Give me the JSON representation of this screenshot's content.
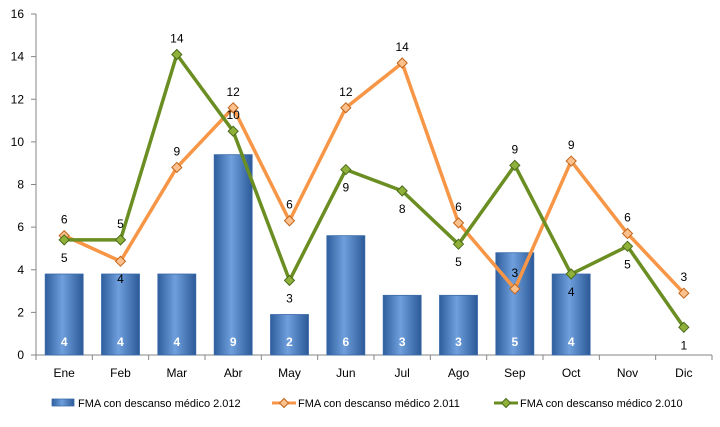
{
  "chart_data": {
    "type": "bar+line",
    "categories": [
      "Ene",
      "Feb",
      "Mar",
      "Abr",
      "May",
      "Jun",
      "Jul",
      "Ago",
      "Sep",
      "Oct",
      "Nov",
      "Dic"
    ],
    "ylim": [
      0,
      16
    ],
    "yticks": [
      0,
      2,
      4,
      6,
      8,
      10,
      12,
      14,
      16
    ],
    "grid": false,
    "legend_position": "bottom",
    "series": [
      {
        "name": "FMA con descanso médico 2.012",
        "type": "bar",
        "color": "#4a7ebb",
        "values": [
          4,
          4,
          4,
          9,
          2,
          6,
          3,
          3,
          5,
          4,
          null,
          null
        ],
        "plotted": [
          3.8,
          3.8,
          3.8,
          9.4,
          1.9,
          5.6,
          2.8,
          2.8,
          4.8,
          3.8,
          null,
          null
        ]
      },
      {
        "name": "FMA con descanso médico 2.011",
        "type": "line",
        "color": "#f79646",
        "values": [
          6,
          4,
          9,
          12,
          6,
          12,
          14,
          6,
          3,
          9,
          6,
          3
        ],
        "plotted": [
          5.6,
          4.4,
          8.8,
          11.6,
          6.3,
          11.6,
          13.7,
          6.2,
          3.1,
          9.1,
          5.7,
          2.9
        ]
      },
      {
        "name": "FMA con descanso médico 2.010",
        "type": "line",
        "color": "#6b8e23",
        "values": [
          5,
          5,
          14,
          10,
          3,
          9,
          8,
          5,
          9,
          4,
          5,
          1
        ],
        "plotted": [
          5.4,
          5.4,
          14.1,
          10.5,
          3.5,
          8.7,
          7.7,
          5.2,
          8.9,
          3.8,
          5.1,
          1.3
        ]
      }
    ]
  }
}
